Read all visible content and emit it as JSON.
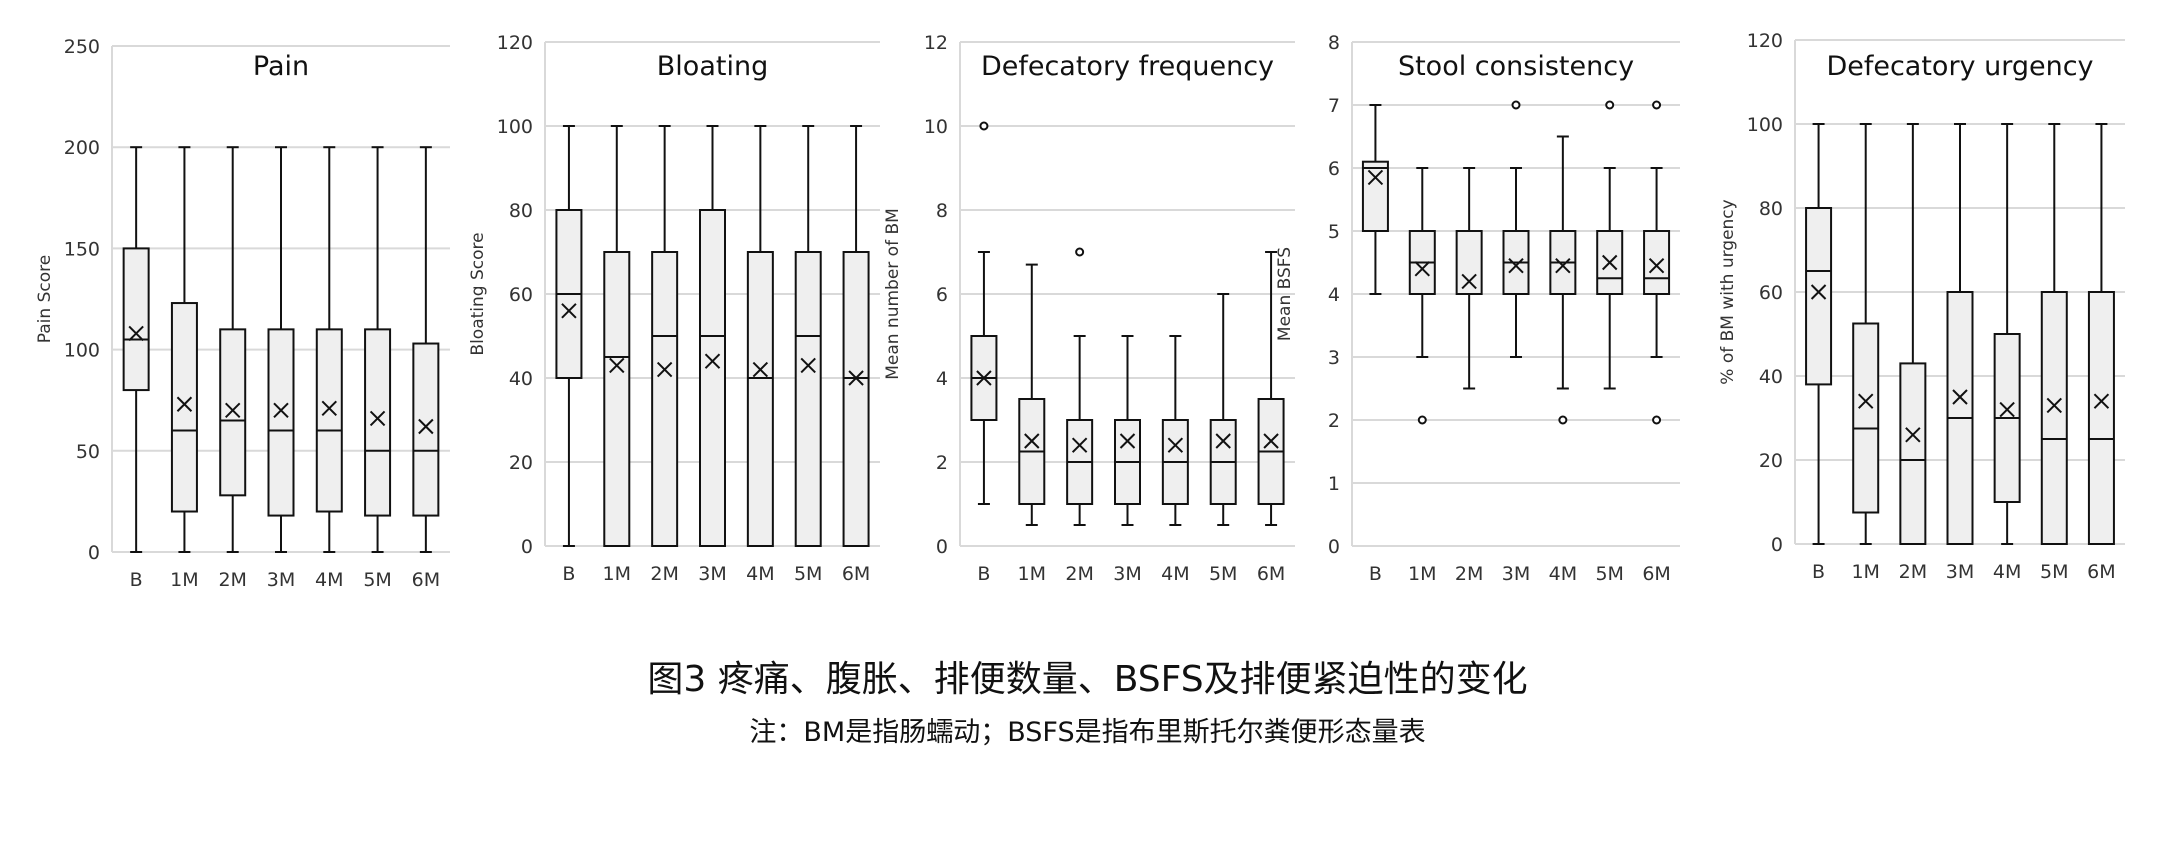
{
  "figure": {
    "caption": "图3 疼痛、腹胀、排便数量、BSFS及排便紧迫性的变化",
    "note": "注：BM是指肠蠕动；BSFS是指布里斯托尔粪便形态量表"
  },
  "chart_data": [
    {
      "type": "boxplot",
      "title": "Pain",
      "ylabel": "Pain Score",
      "xlabel": "",
      "ylim": [
        0,
        250
      ],
      "yticks": [
        0,
        50,
        100,
        150,
        200,
        250
      ],
      "categories": [
        "B",
        "1M",
        "2M",
        "3M",
        "4M",
        "5M",
        "6M"
      ],
      "grid": true,
      "boxes": [
        {
          "min": 0,
          "q1": 80,
          "median": 105,
          "q3": 150,
          "max": 200,
          "mean": 108,
          "outliers": []
        },
        {
          "min": 0,
          "q1": 20,
          "median": 60,
          "q3": 123,
          "max": 200,
          "mean": 73,
          "outliers": []
        },
        {
          "min": 0,
          "q1": 28,
          "median": 65,
          "q3": 110,
          "max": 200,
          "mean": 70,
          "outliers": []
        },
        {
          "min": 0,
          "q1": 18,
          "median": 60,
          "q3": 110,
          "max": 200,
          "mean": 70,
          "outliers": []
        },
        {
          "min": 0,
          "q1": 20,
          "median": 60,
          "q3": 110,
          "max": 200,
          "mean": 71,
          "outliers": []
        },
        {
          "min": 0,
          "q1": 18,
          "median": 50,
          "q3": 110,
          "max": 200,
          "mean": 66,
          "outliers": []
        },
        {
          "min": 0,
          "q1": 18,
          "median": 50,
          "q3": 103,
          "max": 200,
          "mean": 62,
          "outliers": []
        }
      ]
    },
    {
      "type": "boxplot",
      "title": "Bloating",
      "ylabel": "Bloating Score",
      "xlabel": "",
      "ylim": [
        0,
        120
      ],
      "yticks": [
        0,
        20,
        40,
        60,
        80,
        100,
        120
      ],
      "categories": [
        "B",
        "1M",
        "2M",
        "3M",
        "4M",
        "5M",
        "6M"
      ],
      "grid": true,
      "boxes": [
        {
          "min": 0,
          "q1": 40,
          "median": 60,
          "q3": 80,
          "max": 100,
          "mean": 56,
          "outliers": []
        },
        {
          "min": 0,
          "q1": 0,
          "median": 45,
          "q3": 70,
          "max": 100,
          "mean": 43,
          "outliers": []
        },
        {
          "min": 0,
          "q1": 0,
          "median": 50,
          "q3": 70,
          "max": 100,
          "mean": 42,
          "outliers": []
        },
        {
          "min": 0,
          "q1": 0,
          "median": 50,
          "q3": 80,
          "max": 100,
          "mean": 44,
          "outliers": []
        },
        {
          "min": 0,
          "q1": 0,
          "median": 40,
          "q3": 70,
          "max": 100,
          "mean": 42,
          "outliers": []
        },
        {
          "min": 0,
          "q1": 0,
          "median": 50,
          "q3": 70,
          "max": 100,
          "mean": 43,
          "outliers": []
        },
        {
          "min": 0,
          "q1": 0,
          "median": 40,
          "q3": 70,
          "max": 100,
          "mean": 40,
          "outliers": []
        }
      ]
    },
    {
      "type": "boxplot",
      "title": "Defecatory frequency",
      "ylabel": "Mean number of BM",
      "xlabel": "",
      "ylim": [
        0,
        12
      ],
      "yticks": [
        0,
        2,
        4,
        6,
        8,
        10,
        12
      ],
      "categories": [
        "B",
        "1M",
        "2M",
        "3M",
        "4M",
        "5M",
        "6M"
      ],
      "grid": true,
      "boxes": [
        {
          "min": 1,
          "q1": 3,
          "median": 4,
          "q3": 5,
          "max": 7,
          "mean": 4,
          "outliers": [
            10
          ]
        },
        {
          "min": 0.5,
          "q1": 1,
          "median": 2.25,
          "q3": 3.5,
          "max": 6.7,
          "mean": 2.5,
          "outliers": []
        },
        {
          "min": 0.5,
          "q1": 1,
          "median": 2,
          "q3": 3,
          "max": 5,
          "mean": 2.4,
          "outliers": [
            7
          ]
        },
        {
          "min": 0.5,
          "q1": 1,
          "median": 2,
          "q3": 3,
          "max": 5,
          "mean": 2.5,
          "outliers": []
        },
        {
          "min": 0.5,
          "q1": 1,
          "median": 2,
          "q3": 3,
          "max": 5,
          "mean": 2.4,
          "outliers": []
        },
        {
          "min": 0.5,
          "q1": 1,
          "median": 2,
          "q3": 3,
          "max": 6,
          "mean": 2.5,
          "outliers": []
        },
        {
          "min": 0.5,
          "q1": 1,
          "median": 2.25,
          "q3": 3.5,
          "max": 7,
          "mean": 2.5,
          "outliers": []
        }
      ]
    },
    {
      "type": "boxplot",
      "title": "Stool consistency",
      "ylabel": "Mean BSFS",
      "xlabel": "",
      "ylim": [
        0,
        8
      ],
      "yticks": [
        0,
        1,
        2,
        3,
        4,
        5,
        6,
        7,
        8
      ],
      "categories": [
        "B",
        "1M",
        "2M",
        "3M",
        "4M",
        "5M",
        "6M"
      ],
      "grid": true,
      "boxes": [
        {
          "min": 4,
          "q1": 5,
          "median": 6,
          "q3": 6.1,
          "max": 7,
          "mean": 5.85,
          "outliers": []
        },
        {
          "min": 3,
          "q1": 4,
          "median": 4.5,
          "q3": 5,
          "max": 6,
          "mean": 4.4,
          "outliers": [
            2
          ]
        },
        {
          "min": 2.5,
          "q1": 4,
          "median": 4,
          "q3": 5,
          "max": 6,
          "mean": 4.2,
          "outliers": []
        },
        {
          "min": 3,
          "q1": 4,
          "median": 4.5,
          "q3": 5,
          "max": 6,
          "mean": 4.45,
          "outliers": [
            7
          ]
        },
        {
          "min": 2.5,
          "q1": 4,
          "median": 4.5,
          "q3": 5,
          "max": 6.5,
          "mean": 4.45,
          "outliers": [
            2
          ]
        },
        {
          "min": 2.5,
          "q1": 4,
          "median": 4.25,
          "q3": 5,
          "max": 6,
          "mean": 4.5,
          "outliers": [
            7
          ]
        },
        {
          "min": 3,
          "q1": 4,
          "median": 4.25,
          "q3": 5,
          "max": 6,
          "mean": 4.45,
          "outliers": [
            2,
            7
          ]
        }
      ]
    },
    {
      "type": "boxplot",
      "title": "Defecatory urgency",
      "ylabel": "% of BM with urgency",
      "xlabel": "",
      "ylim": [
        0,
        120
      ],
      "yticks": [
        0,
        20,
        40,
        60,
        80,
        100,
        120
      ],
      "categories": [
        "B",
        "1M",
        "2M",
        "3M",
        "4M",
        "5M",
        "6M"
      ],
      "grid": true,
      "boxes": [
        {
          "min": 0,
          "q1": 38,
          "median": 65,
          "q3": 80,
          "max": 100,
          "mean": 60,
          "outliers": []
        },
        {
          "min": 0,
          "q1": 7.5,
          "median": 27.5,
          "q3": 52.5,
          "max": 100,
          "mean": 34,
          "outliers": []
        },
        {
          "min": 0,
          "q1": 0,
          "median": 20,
          "q3": 43,
          "max": 100,
          "mean": 26,
          "outliers": []
        },
        {
          "min": 0,
          "q1": 0,
          "median": 30,
          "q3": 60,
          "max": 100,
          "mean": 35,
          "outliers": []
        },
        {
          "min": 0,
          "q1": 10,
          "median": 30,
          "q3": 50,
          "max": 100,
          "mean": 32,
          "outliers": []
        },
        {
          "min": 0,
          "q1": 0,
          "median": 25,
          "q3": 60,
          "max": 100,
          "mean": 33,
          "outliers": []
        },
        {
          "min": 0,
          "q1": 0,
          "median": 25,
          "q3": 60,
          "max": 100,
          "mean": 34,
          "outliers": []
        }
      ]
    }
  ]
}
